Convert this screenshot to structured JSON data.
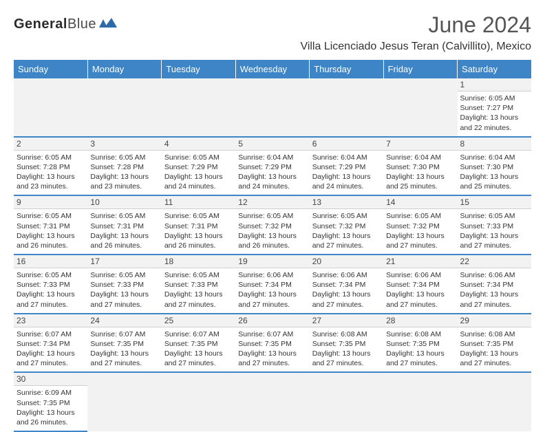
{
  "brand": {
    "name1": "General",
    "name2": "Blue",
    "mark_color": "#2f6aa8"
  },
  "title": "June 2024",
  "subtitle": "Villa Licenciado Jesus Teran (Calvillito), Mexico",
  "colors": {
    "header_bg": "#3d85c6",
    "header_fg": "#ffffff",
    "row_border": "#3d85c6",
    "daynum_bg": "#f2f2f2",
    "text": "#333333"
  },
  "day_headers": [
    "Sunday",
    "Monday",
    "Tuesday",
    "Wednesday",
    "Thursday",
    "Friday",
    "Saturday"
  ],
  "weeks": [
    [
      null,
      null,
      null,
      null,
      null,
      null,
      {
        "d": "1",
        "sr": "6:05 AM",
        "ss": "7:27 PM",
        "dl": "13 hours and 22 minutes."
      }
    ],
    [
      {
        "d": "2",
        "sr": "6:05 AM",
        "ss": "7:28 PM",
        "dl": "13 hours and 23 minutes."
      },
      {
        "d": "3",
        "sr": "6:05 AM",
        "ss": "7:28 PM",
        "dl": "13 hours and 23 minutes."
      },
      {
        "d": "4",
        "sr": "6:05 AM",
        "ss": "7:29 PM",
        "dl": "13 hours and 24 minutes."
      },
      {
        "d": "5",
        "sr": "6:04 AM",
        "ss": "7:29 PM",
        "dl": "13 hours and 24 minutes."
      },
      {
        "d": "6",
        "sr": "6:04 AM",
        "ss": "7:29 PM",
        "dl": "13 hours and 24 minutes."
      },
      {
        "d": "7",
        "sr": "6:04 AM",
        "ss": "7:30 PM",
        "dl": "13 hours and 25 minutes."
      },
      {
        "d": "8",
        "sr": "6:04 AM",
        "ss": "7:30 PM",
        "dl": "13 hours and 25 minutes."
      }
    ],
    [
      {
        "d": "9",
        "sr": "6:05 AM",
        "ss": "7:31 PM",
        "dl": "13 hours and 26 minutes."
      },
      {
        "d": "10",
        "sr": "6:05 AM",
        "ss": "7:31 PM",
        "dl": "13 hours and 26 minutes."
      },
      {
        "d": "11",
        "sr": "6:05 AM",
        "ss": "7:31 PM",
        "dl": "13 hours and 26 minutes."
      },
      {
        "d": "12",
        "sr": "6:05 AM",
        "ss": "7:32 PM",
        "dl": "13 hours and 26 minutes."
      },
      {
        "d": "13",
        "sr": "6:05 AM",
        "ss": "7:32 PM",
        "dl": "13 hours and 27 minutes."
      },
      {
        "d": "14",
        "sr": "6:05 AM",
        "ss": "7:32 PM",
        "dl": "13 hours and 27 minutes."
      },
      {
        "d": "15",
        "sr": "6:05 AM",
        "ss": "7:33 PM",
        "dl": "13 hours and 27 minutes."
      }
    ],
    [
      {
        "d": "16",
        "sr": "6:05 AM",
        "ss": "7:33 PM",
        "dl": "13 hours and 27 minutes."
      },
      {
        "d": "17",
        "sr": "6:05 AM",
        "ss": "7:33 PM",
        "dl": "13 hours and 27 minutes."
      },
      {
        "d": "18",
        "sr": "6:05 AM",
        "ss": "7:33 PM",
        "dl": "13 hours and 27 minutes."
      },
      {
        "d": "19",
        "sr": "6:06 AM",
        "ss": "7:34 PM",
        "dl": "13 hours and 27 minutes."
      },
      {
        "d": "20",
        "sr": "6:06 AM",
        "ss": "7:34 PM",
        "dl": "13 hours and 27 minutes."
      },
      {
        "d": "21",
        "sr": "6:06 AM",
        "ss": "7:34 PM",
        "dl": "13 hours and 27 minutes."
      },
      {
        "d": "22",
        "sr": "6:06 AM",
        "ss": "7:34 PM",
        "dl": "13 hours and 27 minutes."
      }
    ],
    [
      {
        "d": "23",
        "sr": "6:07 AM",
        "ss": "7:34 PM",
        "dl": "13 hours and 27 minutes."
      },
      {
        "d": "24",
        "sr": "6:07 AM",
        "ss": "7:35 PM",
        "dl": "13 hours and 27 minutes."
      },
      {
        "d": "25",
        "sr": "6:07 AM",
        "ss": "7:35 PM",
        "dl": "13 hours and 27 minutes."
      },
      {
        "d": "26",
        "sr": "6:07 AM",
        "ss": "7:35 PM",
        "dl": "13 hours and 27 minutes."
      },
      {
        "d": "27",
        "sr": "6:08 AM",
        "ss": "7:35 PM",
        "dl": "13 hours and 27 minutes."
      },
      {
        "d": "28",
        "sr": "6:08 AM",
        "ss": "7:35 PM",
        "dl": "13 hours and 27 minutes."
      },
      {
        "d": "29",
        "sr": "6:08 AM",
        "ss": "7:35 PM",
        "dl": "13 hours and 27 minutes."
      }
    ],
    [
      {
        "d": "30",
        "sr": "6:09 AM",
        "ss": "7:35 PM",
        "dl": "13 hours and 26 minutes."
      },
      null,
      null,
      null,
      null,
      null,
      null
    ]
  ],
  "labels": {
    "sunrise": "Sunrise:",
    "sunset": "Sunset:",
    "daylight": "Daylight:"
  }
}
